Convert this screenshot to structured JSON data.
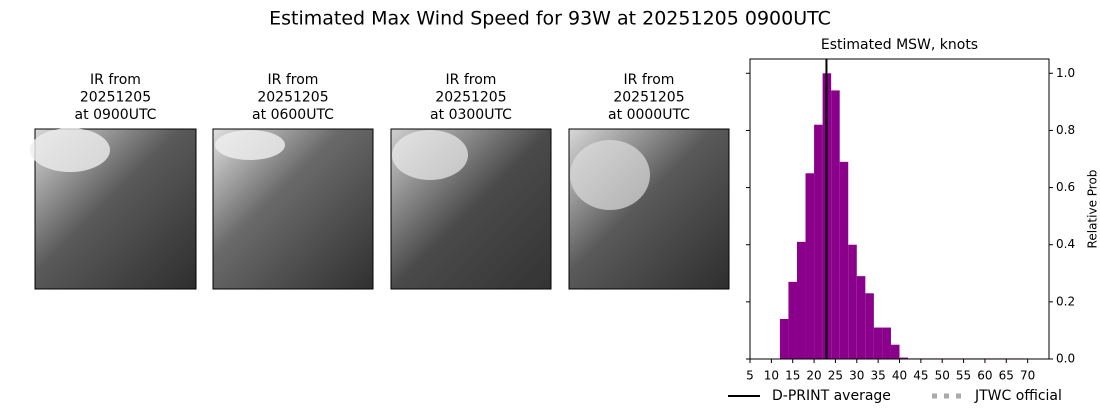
{
  "title": "Estimated Max Wind Speed for 93W at 20251205 0900UTC",
  "panels": [
    {
      "title_lines": [
        "IR from",
        "20251205",
        "at 0900UTC"
      ]
    },
    {
      "title_lines": [
        "IR from",
        "20251205",
        "at 0600UTC"
      ]
    },
    {
      "title_lines": [
        "IR from",
        "20251205",
        "at 0300UTC"
      ]
    },
    {
      "title_lines": [
        "IR from",
        "20251205",
        "at 0000UTC"
      ]
    }
  ],
  "chart_data": {
    "type": "histogram",
    "title": "Estimated MSW, knots",
    "y_label": "Relative Prob",
    "bins": [
      12,
      14,
      16,
      18,
      20,
      22,
      24,
      26,
      28,
      30,
      32,
      34,
      36,
      38,
      40,
      42,
      44,
      46,
      48,
      50,
      52,
      54,
      56,
      58,
      60,
      62,
      64,
      66,
      68,
      70
    ],
    "values": [
      0.14,
      0.27,
      0.41,
      0.65,
      0.82,
      1.0,
      0.94,
      0.69,
      0.4,
      0.29,
      0.23,
      0.11,
      0.11,
      0.05,
      0.005,
      0.002,
      0.002,
      0.002,
      0.002,
      0.002,
      0.002,
      0.002,
      0.002,
      0.002,
      0.002,
      0.002,
      0.002,
      0.002,
      0.002
    ],
    "color": "#8b008b",
    "xlim": [
      5,
      75
    ],
    "ylim": [
      0,
      1.05
    ],
    "xticks": [
      5,
      10,
      15,
      20,
      25,
      30,
      35,
      40,
      45,
      50,
      55,
      60,
      65,
      70
    ],
    "yticks": [
      {
        "value": 0,
        "label": "0.0"
      },
      0.2,
      0.4,
      0.6,
      0.8,
      {
        "value": 1,
        "label": "1.0"
      }
    ],
    "dprint_average": 22.9,
    "legend": [
      "D-PRINT average",
      "JTWC official"
    ]
  }
}
